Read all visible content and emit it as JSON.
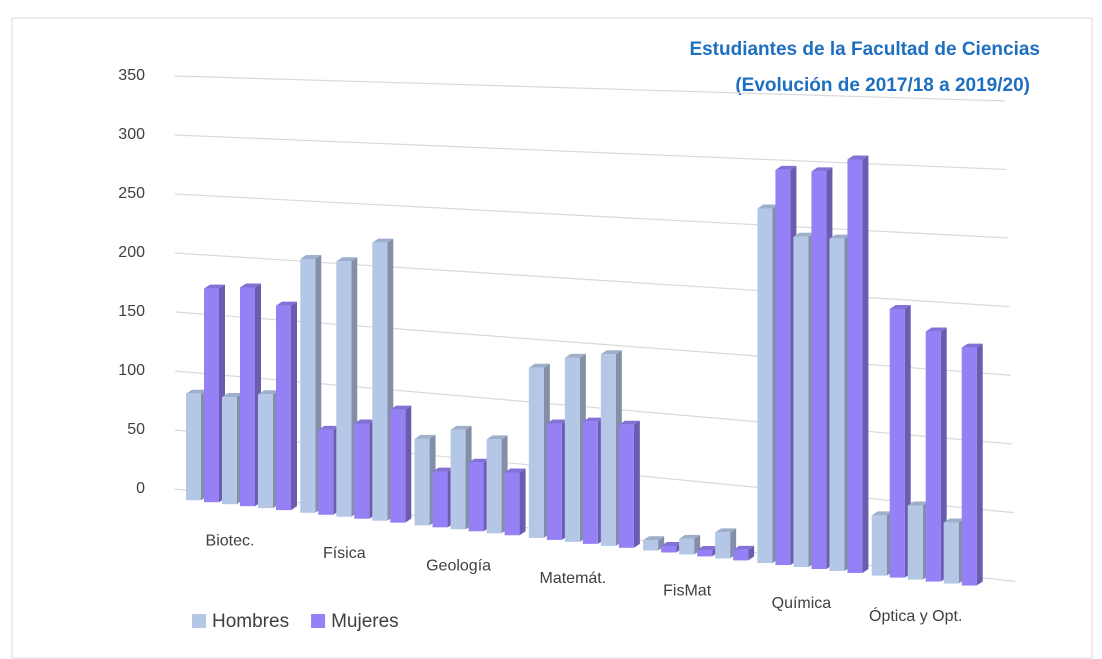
{
  "chart_data": {
    "type": "bar3d",
    "title": [
      "Estudiantes de la Facultad de Ciencias",
      "(Evolución de 2017/18 a 2019/20)"
    ],
    "categories": [
      "Biotec.",
      "Física",
      "Geología",
      "Matemát.",
      "FisMat",
      "Química",
      "Óptica y Opt."
    ],
    "series": [
      {
        "name": "Hombres",
        "color": "#b4c7e7",
        "values": [
          [
            90,
            90,
            95
          ],
          [
            210,
            210,
            227
          ],
          [
            70,
            80,
            75
          ],
          [
            135,
            145,
            150
          ],
          [
            8,
            12,
            20
          ],
          [
            270,
            250,
            250
          ],
          [
            45,
            55,
            45
          ]
        ]
      },
      {
        "name": "Mujeres",
        "color": "#9580f5",
        "values": [
          [
            180,
            183,
            170
          ],
          [
            70,
            78,
            92
          ],
          [
            45,
            55,
            50
          ],
          [
            92,
            96,
            96
          ],
          [
            5,
            5,
            8
          ],
          [
            300,
            300,
            310
          ],
          [
            200,
            185,
            175
          ]
        ]
      }
    ],
    "ylim": [
      0,
      350
    ],
    "yticks": [
      0,
      50,
      100,
      150,
      200,
      250,
      300,
      350
    ],
    "grid": true,
    "legend": "bottom-left"
  }
}
